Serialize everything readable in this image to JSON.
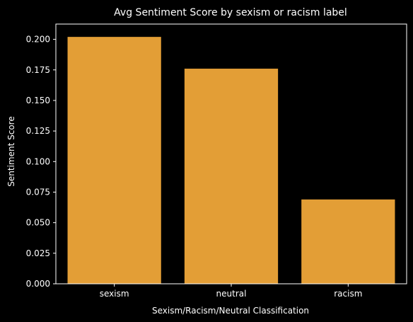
{
  "chart_data": {
    "type": "bar",
    "title": "Avg Sentiment Score by sexism or racism label",
    "xlabel": "Sexism/Racism/Neutral Classification",
    "ylabel": "Sentiment Score",
    "categories": [
      "sexism",
      "neutral",
      "racism"
    ],
    "values": [
      0.202,
      0.176,
      0.069
    ],
    "ylim": [
      0,
      0.2125
    ],
    "yticks": [
      "0.000",
      "0.025",
      "0.050",
      "0.075",
      "0.100",
      "0.125",
      "0.150",
      "0.175",
      "0.200"
    ],
    "grid": false,
    "bar_color": "#e39e36",
    "background": "#000000",
    "text_color": "#ffffff"
  }
}
